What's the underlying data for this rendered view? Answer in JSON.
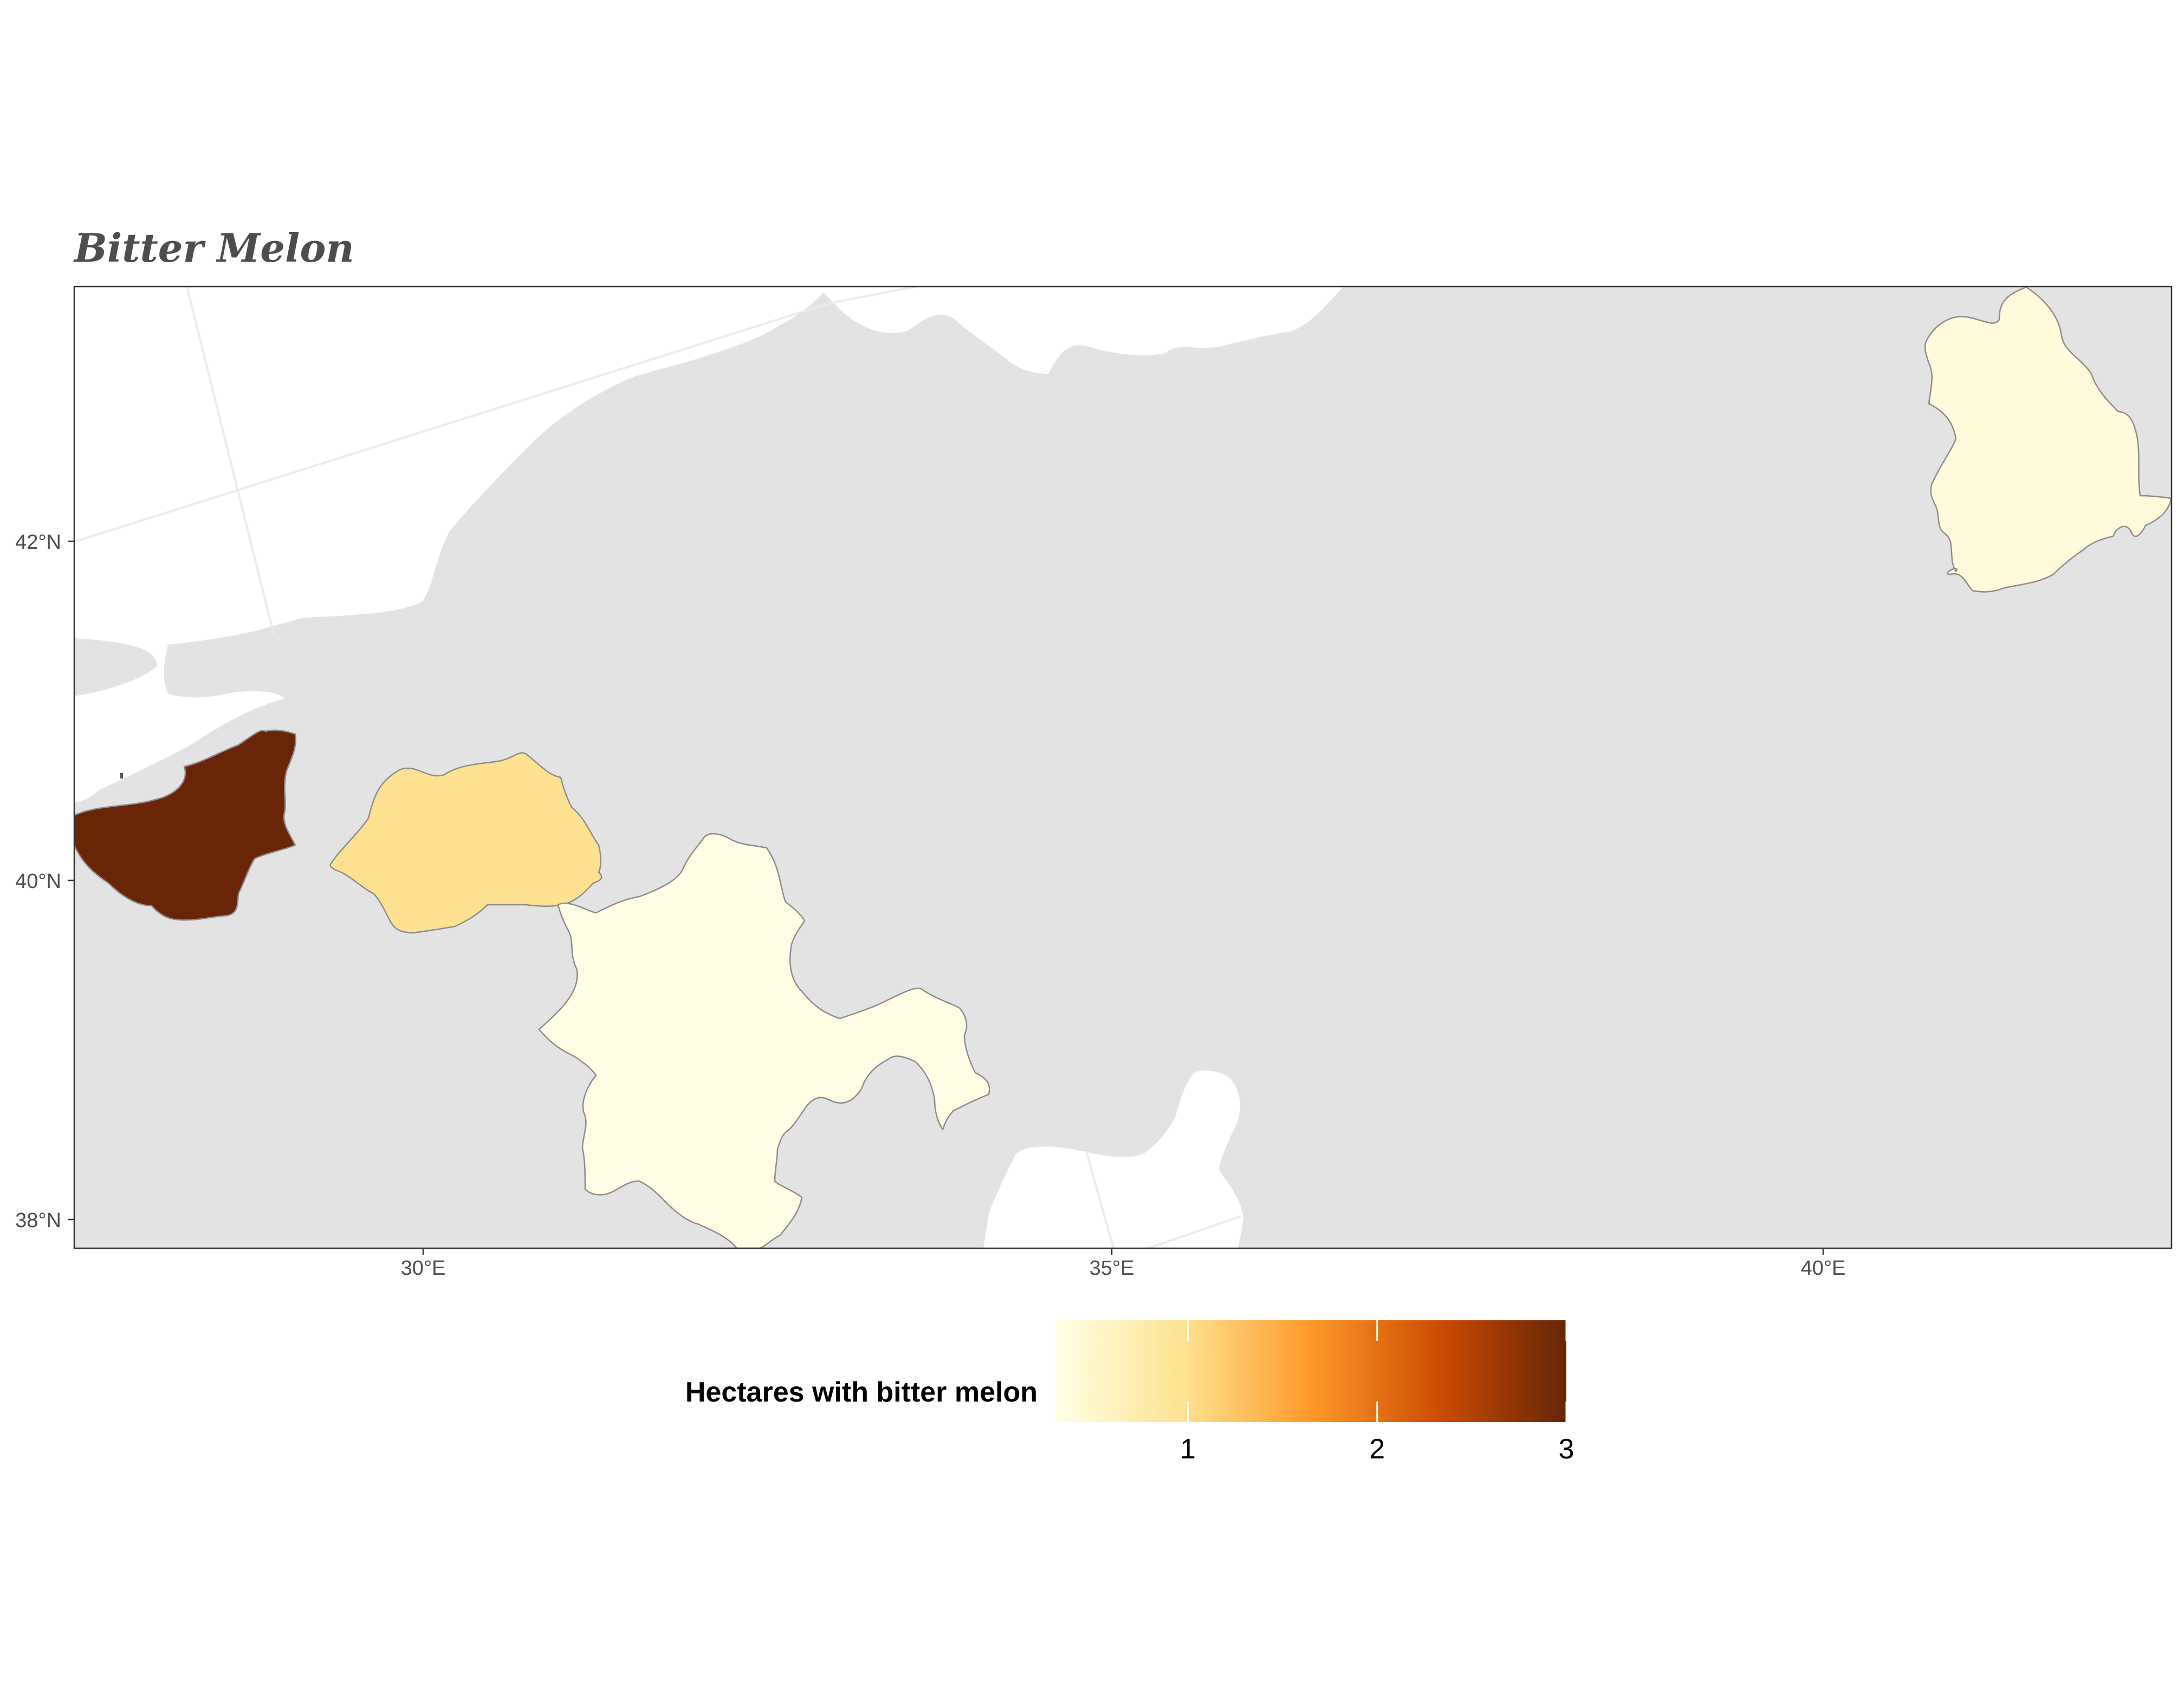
{
  "title": "Bitter Melon",
  "map": {
    "x_ticks": [
      "30°E",
      "35°E",
      "40°E"
    ],
    "y_ticks": [
      "42°N",
      "40°N",
      "38°N"
    ],
    "land_color": "#e3e3e3",
    "water_color": "#ffffff",
    "highlighted_regions": [
      {
        "id": "region-west",
        "value": 3,
        "color": "#6a2506"
      },
      {
        "id": "region-central-west",
        "value": 1.35,
        "color": "#fde191"
      },
      {
        "id": "region-central",
        "value": 0.5,
        "color": "#fffee4"
      },
      {
        "id": "region-northeast",
        "value": 0.5,
        "color": "#fffbda"
      }
    ]
  },
  "legend": {
    "title": "Hectares with bitter melon",
    "min": 0.3,
    "max": 3,
    "labels": [
      "1",
      "2",
      "3"
    ],
    "colors": [
      "#ffffe5",
      "#fee391",
      "#fe9929",
      "#cc4c02",
      "#662506"
    ]
  }
}
